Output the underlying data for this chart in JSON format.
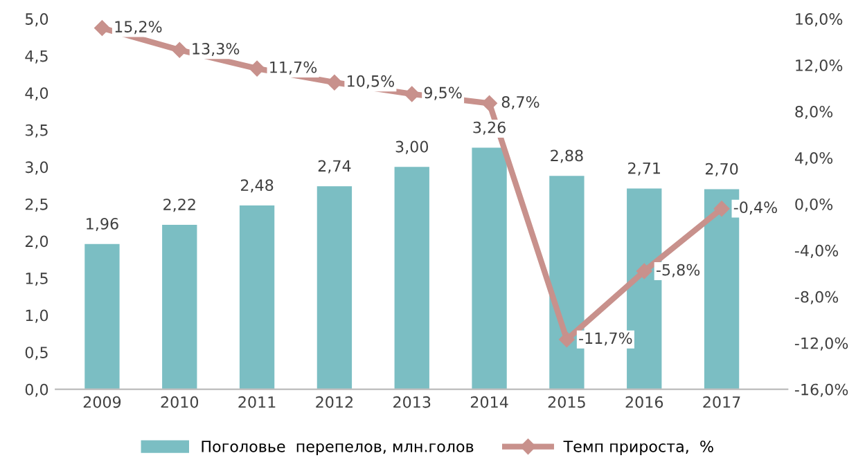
{
  "chart_data": {
    "type": "bar",
    "categories": [
      "2009",
      "2010",
      "2011",
      "2012",
      "2013",
      "2014",
      "2015",
      "2016",
      "2017"
    ],
    "series": [
      {
        "name": "Поголовье  перепелов, млн.голов",
        "color": "#7bbec3",
        "values": [
          1.96,
          2.22,
          2.48,
          2.74,
          3.0,
          3.26,
          2.88,
          2.71,
          2.7
        ],
        "value_labels": [
          "1,96",
          "2,22",
          "2,48",
          "2,74",
          "3,00",
          "3,26",
          "2,88",
          "2,71",
          "2,70"
        ]
      },
      {
        "name": "Темп прироста,  %",
        "type": "line",
        "axis": "y2",
        "color": "#c8918c",
        "marker": "diamond",
        "values": [
          15.2,
          13.3,
          11.7,
          10.5,
          9.5,
          8.7,
          -11.7,
          -5.8,
          -0.4
        ],
        "value_labels": [
          "15,2%",
          "13,3%",
          "11,7%",
          "10,5%",
          "9,5%",
          "8,7%",
          "-11,7%",
          "-5,8%",
          "-0,4%"
        ]
      }
    ],
    "ylim": [
      0,
      5
    ],
    "yticks": [
      {
        "value": 0,
        "label": "0,0"
      },
      {
        "value": 0.5,
        "label": "0,5"
      },
      {
        "value": 1,
        "label": "1,0"
      },
      {
        "value": 1.5,
        "label": "1,5"
      },
      {
        "value": 2,
        "label": "2,0"
      },
      {
        "value": 2.5,
        "label": "2,5"
      },
      {
        "value": 3,
        "label": "3,0"
      },
      {
        "value": 3.5,
        "label": "3,5"
      },
      {
        "value": 4,
        "label": "4,0"
      },
      {
        "value": 4.5,
        "label": "4,5"
      },
      {
        "value": 5,
        "label": "5,0"
      }
    ],
    "y2lim": [
      -16,
      16
    ],
    "y2ticks": [
      {
        "value": -16,
        "label": "-16,0%"
      },
      {
        "value": -12,
        "label": "-12,0%"
      },
      {
        "value": -8,
        "label": "-8,0%"
      },
      {
        "value": -4,
        "label": "-4,0%"
      },
      {
        "value": 0,
        "label": "0,0%"
      },
      {
        "value": 4,
        "label": "4,0%"
      },
      {
        "value": 8,
        "label": "8,0%"
      },
      {
        "value": 12,
        "label": "12,0%"
      },
      {
        "value": 16,
        "label": "16,0%"
      }
    ],
    "legend": "bottom"
  }
}
